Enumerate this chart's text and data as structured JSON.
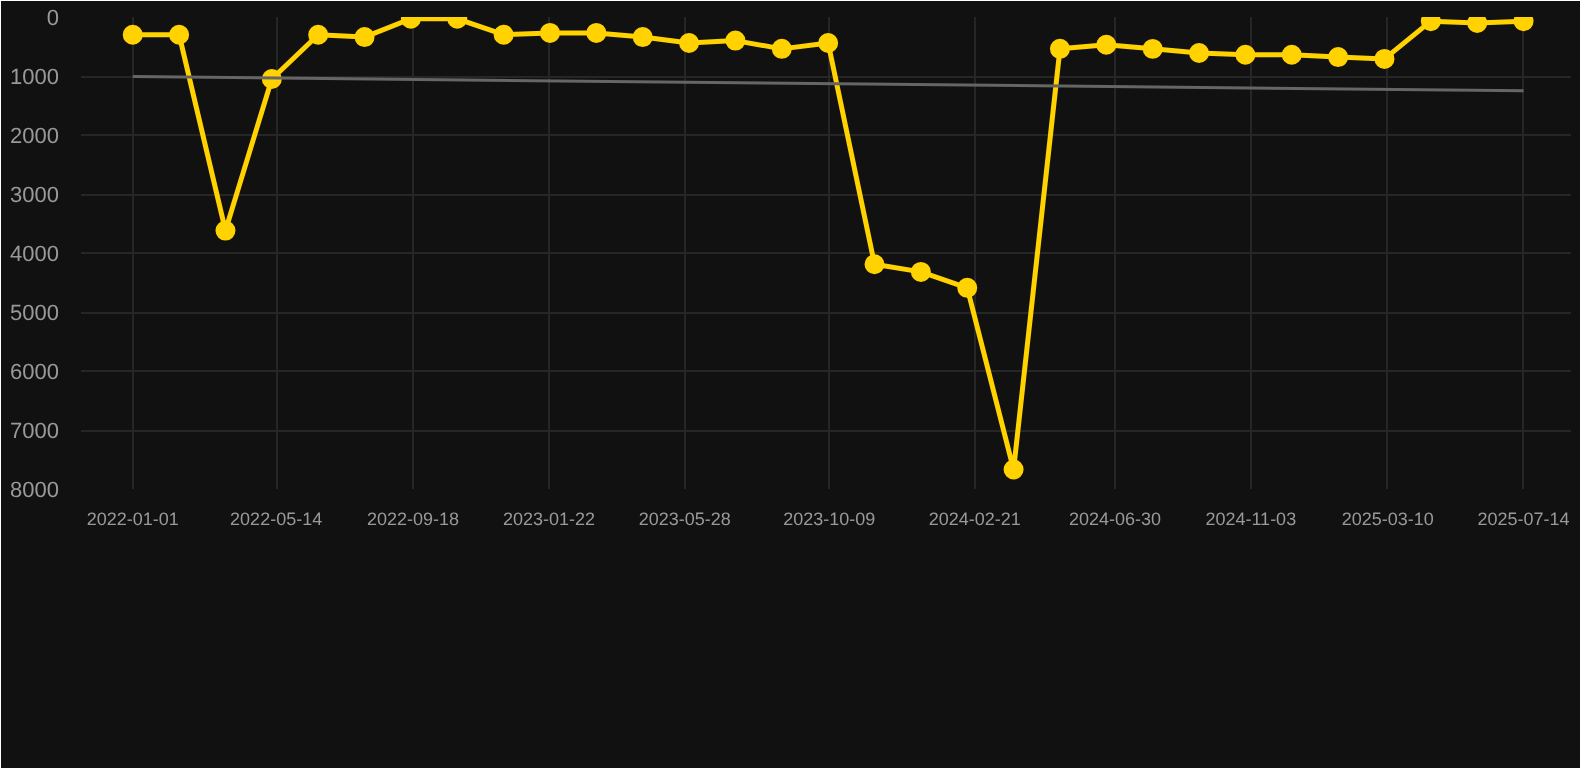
{
  "chart_data": {
    "type": "line",
    "x": [
      "2022-01-01",
      "2022-02-13",
      "2022-03-28",
      "2022-05-10",
      "2022-06-22",
      "2022-08-04",
      "2022-09-16",
      "2022-10-29",
      "2022-12-11",
      "2023-01-23",
      "2023-03-07",
      "2023-04-19",
      "2023-06-01",
      "2023-07-14",
      "2023-08-26",
      "2023-10-08",
      "2023-11-20",
      "2024-01-02",
      "2024-02-14",
      "2024-03-28",
      "2024-05-10",
      "2024-06-22",
      "2024-08-04",
      "2024-09-16",
      "2024-10-29",
      "2024-12-11",
      "2025-01-23",
      "2025-03-07",
      "2025-04-19",
      "2025-06-01",
      "2025-07-14"
    ],
    "series": [
      {
        "color": "#ffd200",
        "marker": "circle",
        "values": [
          300,
          300,
          3620,
          1050,
          300,
          340,
          30,
          30,
          300,
          270,
          270,
          340,
          440,
          400,
          540,
          440,
          4190,
          4320,
          4590,
          7670,
          540,
          470,
          540,
          610,
          640,
          640,
          680,
          710,
          70,
          100,
          70
        ]
      },
      {
        "type": "line",
        "color": "#666666",
        "marker": "none",
        "x": [
          "2022-01-01",
          "2025-07-14"
        ],
        "values": [
          1010,
          1250
        ]
      }
    ],
    "ylim": [
      8000,
      0
    ],
    "yticks": [
      0,
      1000,
      2000,
      3000,
      4000,
      5000,
      6000,
      7000,
      8000
    ],
    "xlim": [
      "2021-11-14",
      "2025-08-27"
    ],
    "xticks": [
      "2022-01-01",
      "2022-05-14",
      "2022-09-18",
      "2023-01-22",
      "2023-05-28",
      "2023-10-09",
      "2024-02-21",
      "2024-06-30",
      "2024-11-03",
      "2025-03-10",
      "2025-07-14"
    ],
    "grid": true
  }
}
